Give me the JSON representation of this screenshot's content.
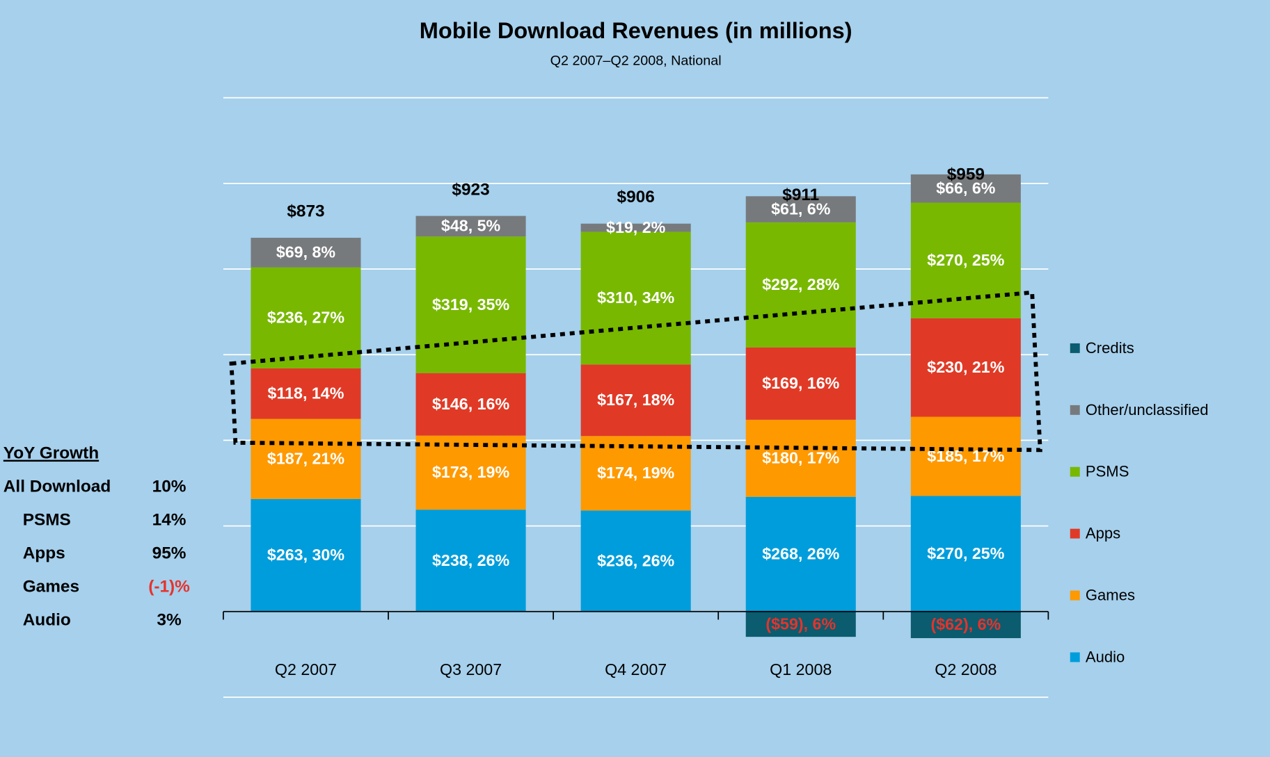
{
  "chart_data": {
    "type": "stacked_bar",
    "title": "Mobile Download Revenues (in millions)",
    "subtitle": "Q2 2007–Q2 2008, National",
    "categories": [
      "Q2 2007",
      "Q3 2007",
      "Q4 2007",
      "Q1 2008",
      "Q2 2008"
    ],
    "series": [
      {
        "name": "Audio",
        "color": "#009ddc",
        "values": [
          263,
          238,
          236,
          268,
          270
        ],
        "value_labels": [
          "$263, 30%",
          "$238, 26%",
          "$236, 26%",
          "$268, 26%",
          "$270, 25%"
        ]
      },
      {
        "name": "Games",
        "color": "#ff9900",
        "values": [
          187,
          173,
          174,
          180,
          185
        ],
        "value_labels": [
          "$187, 21%",
          "$173, 19%",
          "$174, 19%",
          "$180, 17%",
          "$185, 17%"
        ]
      },
      {
        "name": "Apps",
        "color": "#e03a26",
        "values": [
          118,
          146,
          167,
          169,
          230
        ],
        "value_labels": [
          "$118, 14%",
          "$146, 16%",
          "$167, 18%",
          "$169, 16%",
          "$230, 21%"
        ]
      },
      {
        "name": "PSMS",
        "color": "#78b800",
        "values": [
          236,
          319,
          310,
          292,
          270
        ],
        "value_labels": [
          "$236, 27%",
          "$319, 35%",
          "$310, 34%",
          "$292, 28%",
          "$270, 25%"
        ]
      },
      {
        "name": "Other/unclassified",
        "color": "#777a7d",
        "values": [
          69,
          48,
          19,
          61,
          66
        ],
        "value_labels": [
          "$69, 8%",
          "$48, 5%",
          "$19, 2%",
          "$61, 6%",
          "$66, 6%"
        ]
      },
      {
        "name": "Credits",
        "color": "#0b5c6e",
        "label_color": "#e8322a",
        "values": [
          null,
          null,
          null,
          -59,
          -62
        ],
        "value_labels": [
          null,
          null,
          null,
          "($59), 6%",
          "($62), 6%"
        ]
      }
    ],
    "totals": [
      873,
      923,
      906,
      911,
      959
    ],
    "total_labels": [
      "$873",
      "$923",
      "$906",
      "$911",
      "$959"
    ],
    "ylim": [
      -200,
      1200
    ],
    "yticks": [
      -200,
      0,
      200,
      400,
      600,
      800,
      1000,
      1200
    ],
    "grid": true,
    "legend": "right",
    "side_table": {
      "title": "YoY Growth",
      "rows": [
        {
          "label": "All Download",
          "value": "10%"
        },
        {
          "label": "PSMS",
          "value": "14%"
        },
        {
          "label": "Apps",
          "value": "95%"
        },
        {
          "label": "Games",
          "value": "(-1)%",
          "color": "#e8322a"
        },
        {
          "label": "Audio",
          "value": "3%"
        }
      ]
    }
  }
}
